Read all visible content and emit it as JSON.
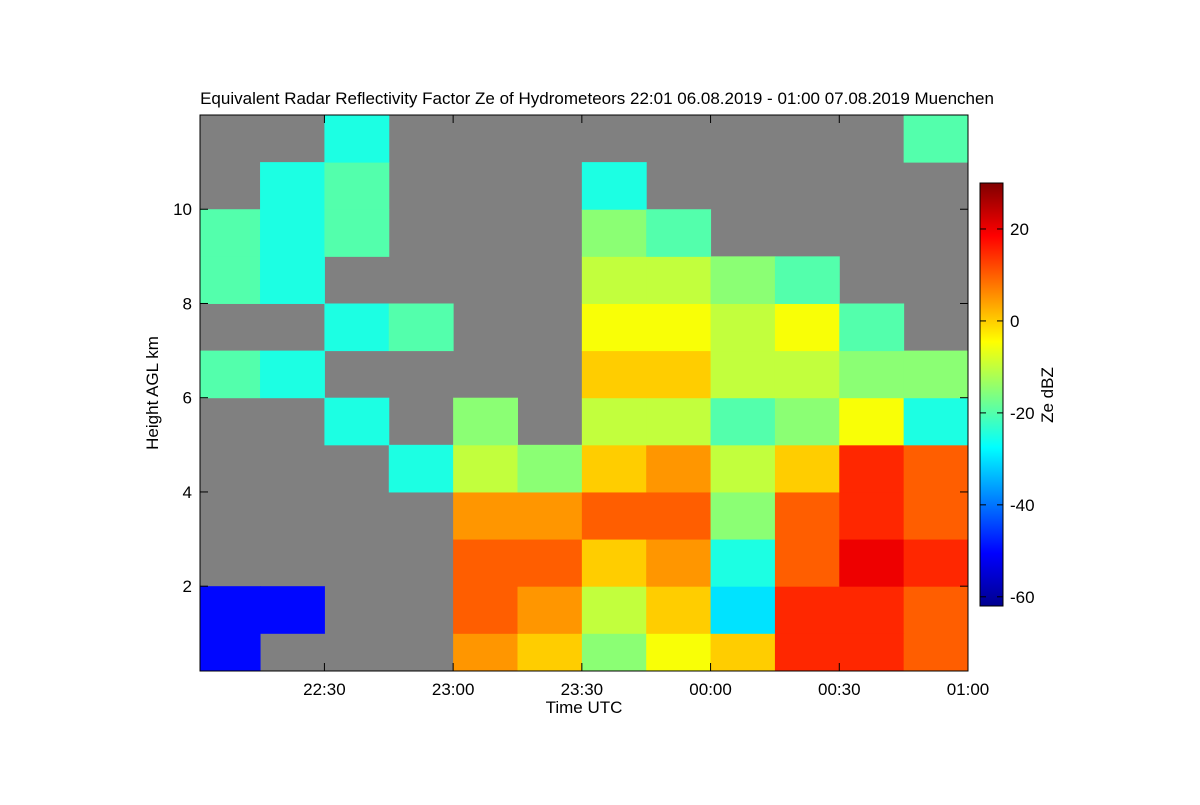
{
  "chart_data": {
    "type": "heatmap",
    "title": "Equivalent Radar Reflectivity Factor Ze of Hydrometeors   22:01 06.08.2019 - 01:00 07.08.2019 Muenchen",
    "x_label": "Time UTC",
    "y_label": "Height AGL km",
    "colorbar_label": "Ze dBZ",
    "colormap": "jet",
    "background": "#808080",
    "xlim": [
      22.0167,
      25
    ],
    "xticks": [
      {
        "value": 22.5,
        "label": "22:30"
      },
      {
        "value": 23,
        "label": "23:00"
      },
      {
        "value": 23.5,
        "label": "23:30"
      },
      {
        "value": 24,
        "label": "00:00"
      },
      {
        "value": 24.5,
        "label": "00:30"
      },
      {
        "value": 25,
        "label": "01:00"
      }
    ],
    "ylim": [
      0.2,
      12
    ],
    "yticks": [
      2,
      4,
      6,
      8,
      10
    ],
    "clim": [
      -62,
      30
    ],
    "cticks": [
      -60,
      -40,
      -20,
      0,
      20
    ],
    "x": [
      22.125,
      22.375,
      22.625,
      22.875,
      23.125,
      23.375,
      23.625,
      23.875,
      24.125,
      24.375,
      24.625,
      24.875
    ],
    "y": [
      0.5,
      1.5,
      2.5,
      3.5,
      4.5,
      5.5,
      6.5,
      7.5,
      8.5,
      9.5,
      10.5,
      11.5
    ],
    "z": [
      [
        -50,
        null,
        null,
        null,
        5,
        0,
        -15,
        -5,
        0,
        15,
        15,
        10
      ],
      [
        -50,
        -50,
        null,
        null,
        10,
        5,
        -10,
        0,
        -30,
        15,
        15,
        10
      ],
      [
        null,
        null,
        null,
        null,
        10,
        10,
        0,
        5,
        -25,
        10,
        20,
        15
      ],
      [
        null,
        null,
        null,
        null,
        5,
        5,
        10,
        10,
        -15,
        10,
        15,
        10
      ],
      [
        null,
        null,
        null,
        -25,
        -10,
        -15,
        0,
        5,
        -10,
        0,
        15,
        10
      ],
      [
        null,
        null,
        -25,
        null,
        -15,
        null,
        -10,
        -10,
        -20,
        -15,
        -5,
        -25
      ],
      [
        -20,
        -25,
        null,
        null,
        null,
        null,
        0,
        0,
        -10,
        -10,
        -15,
        -15
      ],
      [
        null,
        null,
        -25,
        -20,
        null,
        null,
        -5,
        -5,
        -10,
        -5,
        -20,
        null
      ],
      [
        -20,
        -25,
        null,
        null,
        null,
        null,
        -10,
        -10,
        -15,
        -20,
        null,
        null
      ],
      [
        -20,
        -25,
        -20,
        null,
        null,
        null,
        -15,
        -20,
        null,
        null,
        null,
        null
      ],
      [
        null,
        -25,
        -20,
        null,
        null,
        null,
        -25,
        null,
        null,
        null,
        null,
        null
      ],
      [
        null,
        null,
        -25,
        null,
        null,
        null,
        null,
        null,
        null,
        null,
        null,
        -20
      ]
    ]
  }
}
